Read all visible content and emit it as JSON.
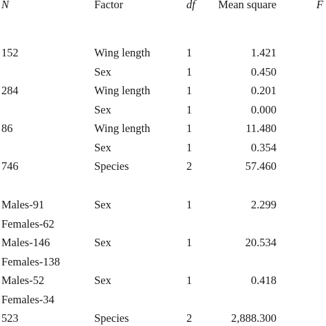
{
  "table": {
    "header": {
      "n": "N",
      "factor": "Factor",
      "df": "df",
      "mean_square": "Mean square",
      "f": "F"
    },
    "rows": [
      {
        "n": "152",
        "factor": "Wing length",
        "df": "1",
        "mean_square": "1.421"
      },
      {
        "n": "",
        "factor": "Sex",
        "df": "1",
        "mean_square": "0.450"
      },
      {
        "n": "284",
        "factor": "Wing length",
        "df": "1",
        "mean_square": "0.201"
      },
      {
        "n": "",
        "factor": "Sex",
        "df": "1",
        "mean_square": "0.000"
      },
      {
        "n": "86",
        "factor": "Wing length",
        "df": "1",
        "mean_square": "11.480"
      },
      {
        "n": "",
        "factor": "Sex",
        "df": "1",
        "mean_square": "0.354"
      },
      {
        "n": "746",
        "factor": "Species",
        "df": "2",
        "mean_square": "57.460"
      },
      {
        "n": "Males-91",
        "factor": "Sex",
        "df": "1",
        "mean_square": "2.299"
      },
      {
        "n": "Females-62",
        "factor": "",
        "df": "",
        "mean_square": ""
      },
      {
        "n": "Males-146",
        "factor": "Sex",
        "df": "1",
        "mean_square": "20.534"
      },
      {
        "n": "Females-138",
        "factor": "",
        "df": "",
        "mean_square": ""
      },
      {
        "n": "Males-52",
        "factor": "Sex",
        "df": "1",
        "mean_square": "0.418"
      },
      {
        "n": "Females-34",
        "factor": "",
        "df": "",
        "mean_square": ""
      },
      {
        "n": "523",
        "factor": "Species",
        "df": "2",
        "mean_square": "2,888.300"
      }
    ]
  }
}
